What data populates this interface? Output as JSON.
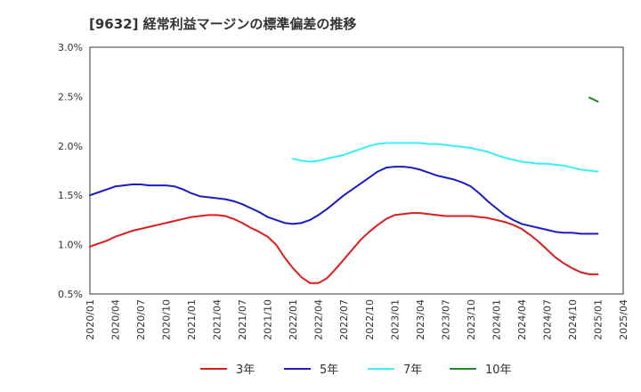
{
  "title": "[9632]  経常利益マージンの標準偏差の推移",
  "chart_data": {
    "type": "line",
    "title": "[9632]  経常利益マージンの標準偏差の推移",
    "xlabel": "",
    "ylabel": "",
    "ylim": [
      0.5,
      3.0
    ],
    "x_tick_labels": [
      "2020/01",
      "2020/04",
      "2020/07",
      "2020/10",
      "2021/01",
      "2021/04",
      "2021/07",
      "2021/10",
      "2022/01",
      "2022/04",
      "2022/07",
      "2022/10",
      "2023/01",
      "2023/04",
      "2023/07",
      "2023/10",
      "2024/01",
      "2024/04",
      "2024/07",
      "2024/10",
      "2025/01",
      "2025/04"
    ],
    "y_tick_labels": [
      "0.5%",
      "1.0%",
      "1.5%",
      "2.0%",
      "2.5%",
      "3.0%"
    ],
    "grid": true,
    "legend_position": "bottom",
    "series": [
      {
        "name": "3年",
        "color": "#dd1c1c",
        "x": [
          "2020/01",
          "2020/02",
          "2020/03",
          "2020/04",
          "2020/05",
          "2020/06",
          "2020/07",
          "2020/08",
          "2020/09",
          "2020/10",
          "2020/11",
          "2020/12",
          "2021/01",
          "2021/02",
          "2021/03",
          "2021/04",
          "2021/05",
          "2021/06",
          "2021/07",
          "2021/08",
          "2021/09",
          "2021/10",
          "2021/11",
          "2021/12",
          "2022/01",
          "2022/02",
          "2022/03",
          "2022/04",
          "2022/05",
          "2022/06",
          "2022/07",
          "2022/08",
          "2022/09",
          "2022/10",
          "2022/11",
          "2022/12",
          "2023/01",
          "2023/02",
          "2023/03",
          "2023/04",
          "2023/05",
          "2023/06",
          "2023/07",
          "2023/08",
          "2023/09",
          "2023/10",
          "2023/11",
          "2023/12",
          "2024/01",
          "2024/02",
          "2024/03",
          "2024/04",
          "2024/05",
          "2024/06",
          "2024/07",
          "2024/08",
          "2024/09",
          "2024/10",
          "2024/11",
          "2024/12",
          "2025/01"
        ],
        "values": [
          0.98,
          1.01,
          1.04,
          1.08,
          1.11,
          1.14,
          1.16,
          1.18,
          1.2,
          1.22,
          1.24,
          1.26,
          1.28,
          1.29,
          1.3,
          1.3,
          1.29,
          1.26,
          1.22,
          1.17,
          1.13,
          1.08,
          1.0,
          0.87,
          0.76,
          0.67,
          0.61,
          0.61,
          0.66,
          0.75,
          0.85,
          0.95,
          1.05,
          1.13,
          1.2,
          1.26,
          1.3,
          1.31,
          1.32,
          1.32,
          1.31,
          1.3,
          1.29,
          1.29,
          1.29,
          1.29,
          1.28,
          1.27,
          1.25,
          1.23,
          1.2,
          1.16,
          1.1,
          1.03,
          0.95,
          0.87,
          0.81,
          0.76,
          0.72,
          0.7,
          0.7
        ]
      },
      {
        "name": "5年",
        "color": "#1a1ac8",
        "x": [
          "2020/01",
          "2020/02",
          "2020/03",
          "2020/04",
          "2020/05",
          "2020/06",
          "2020/07",
          "2020/08",
          "2020/09",
          "2020/10",
          "2020/11",
          "2020/12",
          "2021/01",
          "2021/02",
          "2021/03",
          "2021/04",
          "2021/05",
          "2021/06",
          "2021/07",
          "2021/08",
          "2021/09",
          "2021/10",
          "2021/11",
          "2021/12",
          "2022/01",
          "2022/02",
          "2022/03",
          "2022/04",
          "2022/05",
          "2022/06",
          "2022/07",
          "2022/08",
          "2022/09",
          "2022/10",
          "2022/11",
          "2022/12",
          "2023/01",
          "2023/02",
          "2023/03",
          "2023/04",
          "2023/05",
          "2023/06",
          "2023/07",
          "2023/08",
          "2023/09",
          "2023/10",
          "2023/11",
          "2023/12",
          "2024/01",
          "2024/02",
          "2024/03",
          "2024/04",
          "2024/05",
          "2024/06",
          "2024/07",
          "2024/08",
          "2024/09",
          "2024/10",
          "2024/11",
          "2024/12",
          "2025/01"
        ],
        "values": [
          1.5,
          1.53,
          1.56,
          1.59,
          1.6,
          1.61,
          1.61,
          1.6,
          1.6,
          1.6,
          1.59,
          1.56,
          1.52,
          1.49,
          1.48,
          1.47,
          1.46,
          1.44,
          1.41,
          1.37,
          1.33,
          1.28,
          1.25,
          1.22,
          1.21,
          1.22,
          1.25,
          1.3,
          1.36,
          1.43,
          1.5,
          1.56,
          1.62,
          1.68,
          1.74,
          1.78,
          1.79,
          1.79,
          1.78,
          1.76,
          1.73,
          1.7,
          1.68,
          1.66,
          1.63,
          1.59,
          1.52,
          1.44,
          1.37,
          1.3,
          1.25,
          1.21,
          1.19,
          1.17,
          1.15,
          1.13,
          1.12,
          1.12,
          1.11,
          1.11,
          1.11
        ]
      },
      {
        "name": "7年",
        "color": "#38f0f0",
        "x": [
          "2022/01",
          "2022/02",
          "2022/03",
          "2022/04",
          "2022/05",
          "2022/06",
          "2022/07",
          "2022/08",
          "2022/09",
          "2022/10",
          "2022/11",
          "2022/12",
          "2023/01",
          "2023/02",
          "2023/03",
          "2023/04",
          "2023/05",
          "2023/06",
          "2023/07",
          "2023/08",
          "2023/09",
          "2023/10",
          "2023/11",
          "2023/12",
          "2024/01",
          "2024/02",
          "2024/03",
          "2024/04",
          "2024/05",
          "2024/06",
          "2024/07",
          "2024/08",
          "2024/09",
          "2024/10",
          "2024/11",
          "2024/12",
          "2025/01"
        ],
        "values": [
          1.87,
          1.85,
          1.84,
          1.85,
          1.87,
          1.89,
          1.91,
          1.94,
          1.97,
          2.0,
          2.02,
          2.03,
          2.03,
          2.03,
          2.03,
          2.03,
          2.02,
          2.02,
          2.01,
          2.0,
          1.99,
          1.98,
          1.96,
          1.94,
          1.91,
          1.88,
          1.86,
          1.84,
          1.83,
          1.82,
          1.82,
          1.81,
          1.8,
          1.78,
          1.76,
          1.75,
          1.74
        ]
      },
      {
        "name": "10年",
        "color": "#228822",
        "x": [
          "2024/12",
          "2025/01"
        ],
        "values": [
          2.49,
          2.45
        ]
      }
    ]
  }
}
